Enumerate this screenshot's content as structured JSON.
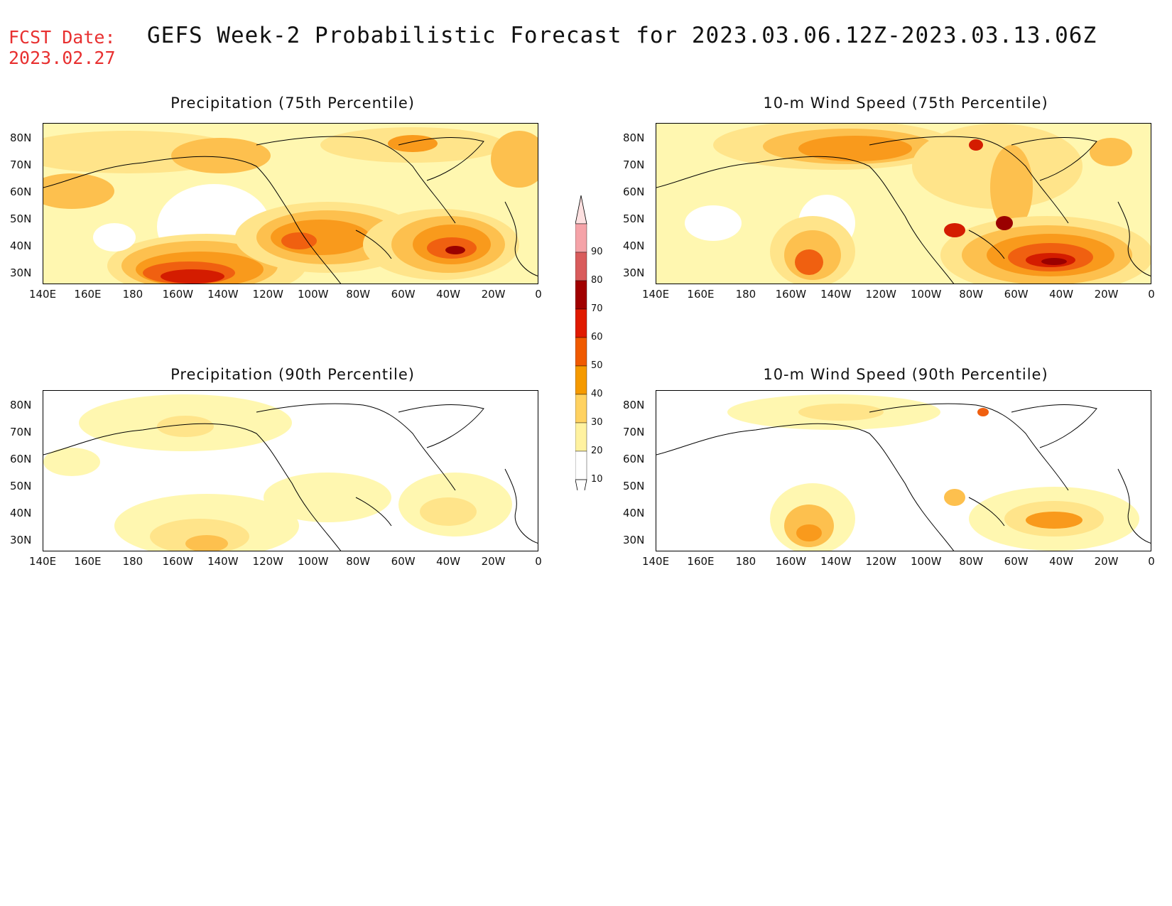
{
  "header": {
    "fcst_line1": "FCST Date:",
    "fcst_line2": "2023.02.27",
    "title": "GEFS Week-2 Probabilistic Forecast for 2023.03.06.12Z-2023.03.13.06Z"
  },
  "axes": {
    "lat_ticks": [
      "80N",
      "70N",
      "60N",
      "50N",
      "40N",
      "30N"
    ],
    "lon_ticks": [
      "140E",
      "160E",
      "180",
      "160W",
      "140W",
      "120W",
      "100W",
      "80W",
      "60W",
      "40W",
      "20W",
      "0"
    ]
  },
  "panels": [
    {
      "title": "Precipitation (75th Percentile)"
    },
    {
      "title": "10-m Wind Speed (75th Percentile)"
    },
    {
      "title": "Precipitation (90th Percentile)"
    },
    {
      "title": "10-m Wind Speed (90th Percentile)"
    }
  ],
  "colorbar": {
    "levels": [
      "90",
      "80",
      "70",
      "60",
      "50",
      "40",
      "30",
      "20",
      "10"
    ],
    "colors": [
      "#f5a3a8",
      "#d95c5c",
      "#a10000",
      "#e01a00",
      "#f05a00",
      "#f59a00",
      "#ffd261",
      "#fff2a0",
      "#ffffff"
    ]
  },
  "colors": {
    "c10": "#fff7b0",
    "c20": "#ffe48a",
    "c30": "#fdc04e",
    "c40": "#f99a1c",
    "c50": "#f06010",
    "c60": "#d41c00",
    "c70": "#9a0000"
  }
}
